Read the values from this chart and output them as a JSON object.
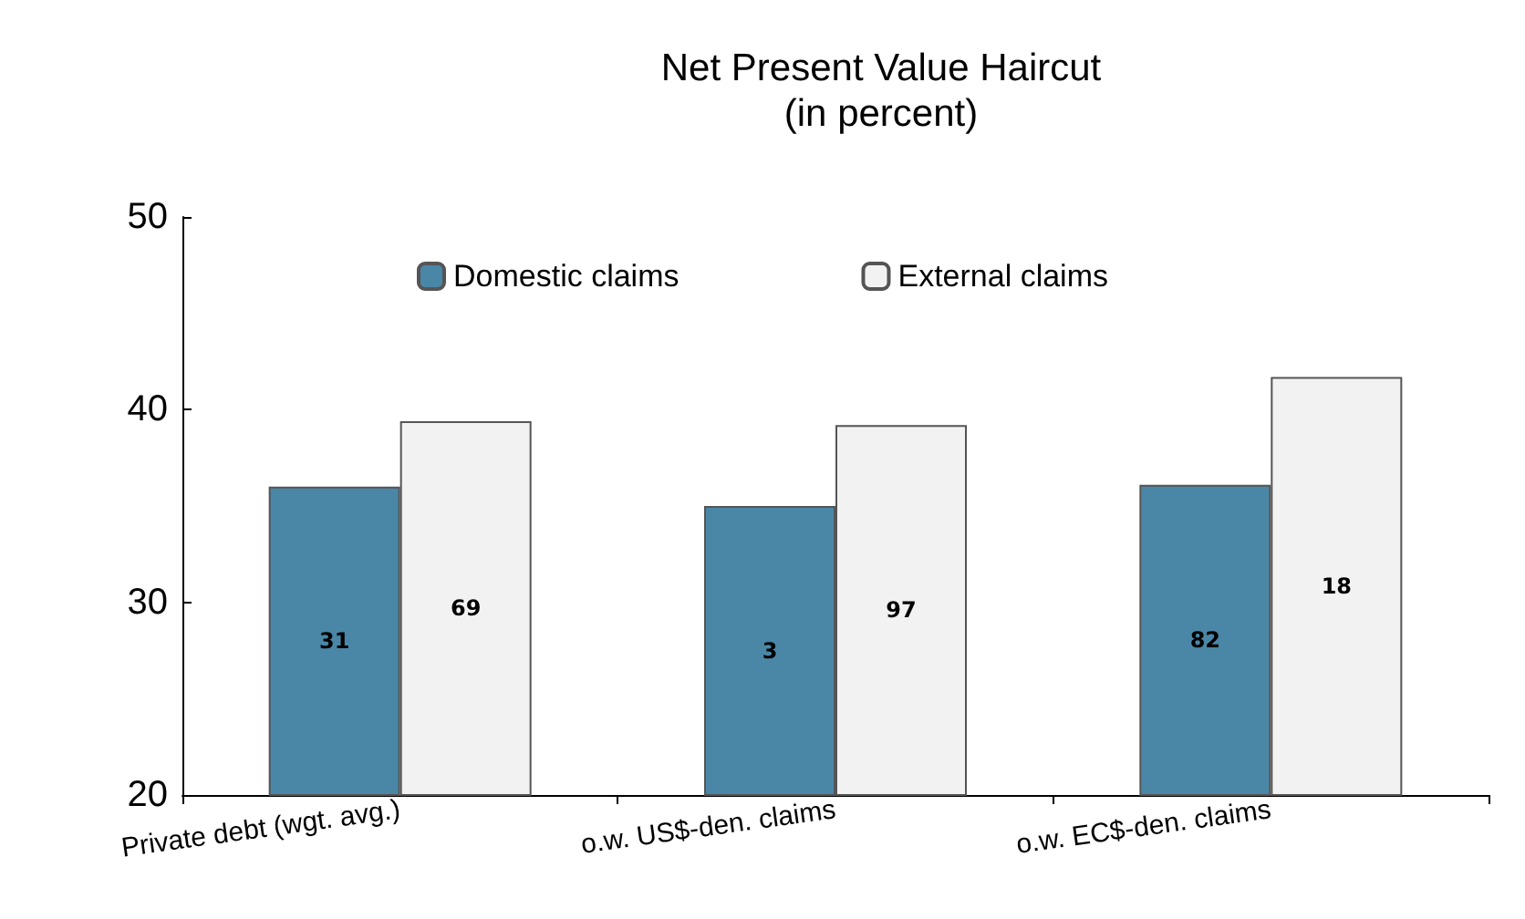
{
  "chart_data": {
    "type": "bar",
    "title": "Net Present Value Haircut",
    "subtitle": "(in percent)",
    "categories": [
      "Private debt (wgt. avg.)",
      "o.w. US$-den. claims",
      "o.w. EC$-den. claims"
    ],
    "series": [
      {
        "name": "Domestic claims",
        "color": "#4a87a7",
        "values": [
          36,
          35,
          36.1
        ]
      },
      {
        "name": "External claims",
        "color": "#f2f2f2",
        "values": [
          39.4,
          39.2,
          41.7
        ]
      }
    ],
    "annotations": [
      "31",
      "69",
      "3",
      "97",
      "82",
      "18"
    ],
    "ylim": [
      20,
      50
    ],
    "yticks": [
      20,
      30,
      40,
      50
    ],
    "grid": false,
    "legend": "top"
  }
}
